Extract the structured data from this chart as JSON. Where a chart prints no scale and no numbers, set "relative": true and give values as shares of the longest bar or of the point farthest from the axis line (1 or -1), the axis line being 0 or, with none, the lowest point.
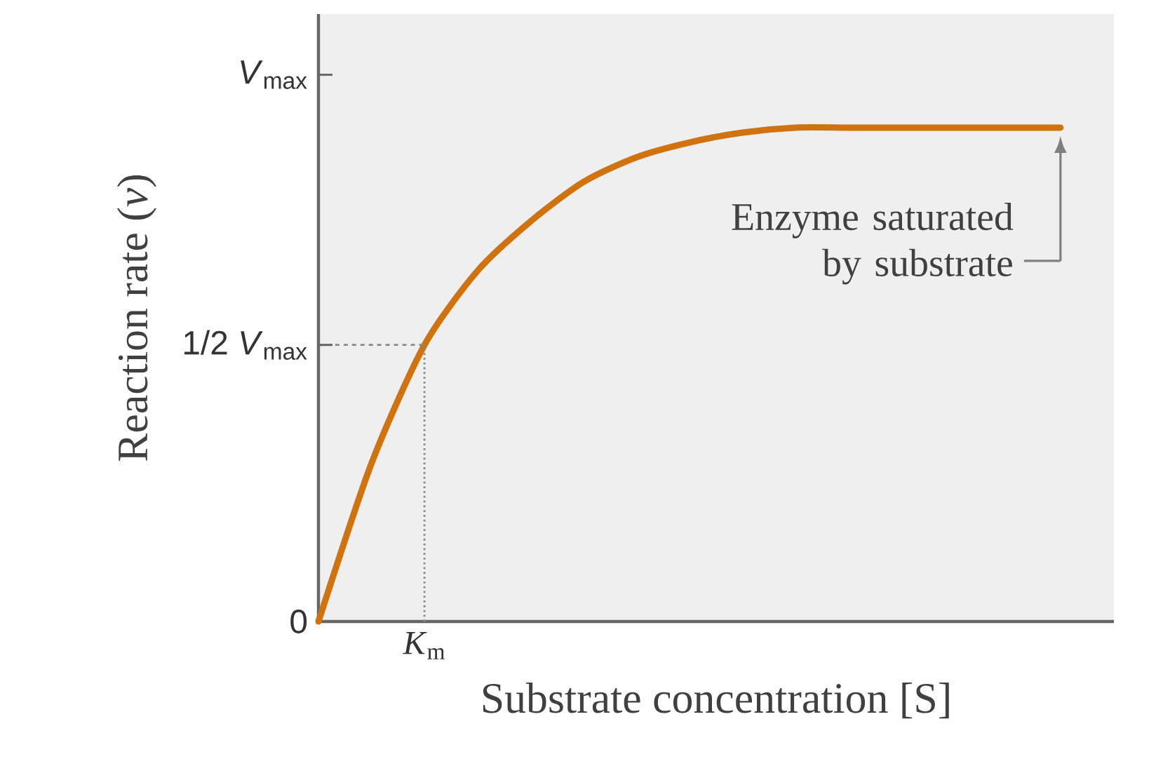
{
  "chart_data": {
    "type": "line",
    "xlabel": "Substrate concentration [S]",
    "ylabel": "Reaction rate (*v*)",
    "categories": [
      null,
      null,
      null,
      null,
      null,
      null,
      null,
      null,
      null,
      null,
      null,
      null,
      null,
      null,
      null
    ],
    "relative": true,
    "values": [
      0,
      0.32,
      0.56,
      0.71,
      0.81,
      0.89,
      0.94,
      0.97,
      0.99,
      1,
      1,
      1,
      1,
      1,
      1
    ],
    "color": "#d0730f",
    "line_style": "solid",
    "marker": "none",
    "ref_lines": [
      {
        "axis": "y",
        "value": 0.56,
        "color": "#8a8a8a",
        "line_style": "dashed"
      }
    ],
    "annotations": [
      "0",
      "1/2 *V*$_{max}$",
      "*V*$_{max}$",
      "*K*$_{m}$",
      {
        "text": "Enzyme saturated by substrate",
        "y": 1
      }
    ]
  }
}
